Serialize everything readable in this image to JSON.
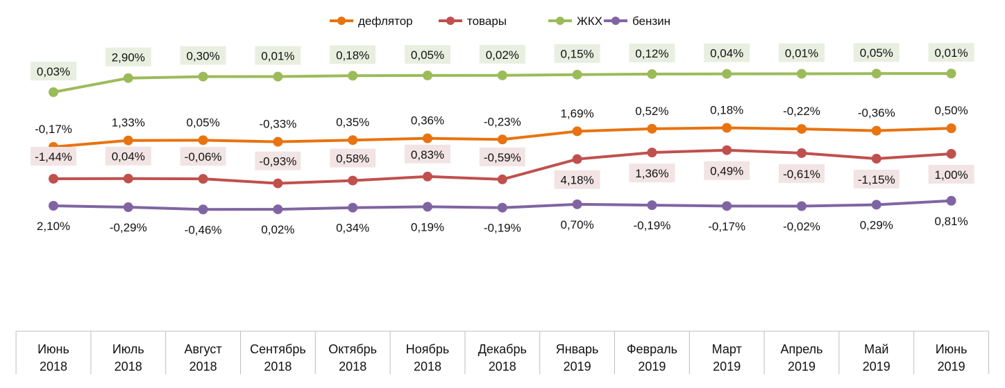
{
  "chart_data": {
    "type": "line",
    "title": "",
    "xlabel": "",
    "ylabel": "",
    "grid": false,
    "legend_placement": "top",
    "categories": [
      [
        "Июнь",
        "2018"
      ],
      [
        "Июль",
        "2018"
      ],
      [
        "Август",
        "2018"
      ],
      [
        "Сентябрь",
        "2018"
      ],
      [
        "Октябрь",
        "2018"
      ],
      [
        "Ноябрь",
        "2018"
      ],
      [
        "Декабрь",
        "2018"
      ],
      [
        "Январь",
        "2019"
      ],
      [
        "Февраль",
        "2019"
      ],
      [
        "Март",
        "2019"
      ],
      [
        "Апрель",
        "2019"
      ],
      [
        "Май",
        "2019"
      ],
      [
        "Июнь",
        "2019"
      ]
    ],
    "series": [
      {
        "name": "дефлятор",
        "color": "#e8730f",
        "values": [
          -0.17,
          1.33,
          0.05,
          -0.33,
          0.35,
          0.36,
          -0.23,
          1.69,
          0.52,
          0.18,
          -0.22,
          -0.36,
          0.5
        ],
        "labels": [
          "-0,17%",
          "1,33%",
          "0,05%",
          "-0,33%",
          "0,35%",
          "0,36%",
          "-0,23%",
          "1,69%",
          "0,52%",
          "0,18%",
          "-0,22%",
          "-0,36%",
          "0,50%"
        ]
      },
      {
        "name": "товары",
        "color": "#c0504d",
        "values": [
          -1.44,
          0.04,
          -0.06,
          -0.93,
          0.58,
          0.83,
          -0.59,
          4.18,
          1.36,
          0.49,
          -0.61,
          -1.15,
          1.0
        ],
        "labels": [
          "-1,44%",
          "0,04%",
          "-0,06%",
          "-0,93%",
          "0,58%",
          "0,83%",
          "-0,59%",
          "4,18%",
          "1,36%",
          "0,49%",
          "-0,61%",
          "-1,15%",
          "1,00%"
        ]
      },
      {
        "name": "ЖКХ",
        "color": "#9bbb59",
        "values": [
          0.03,
          2.9,
          0.3,
          0.01,
          0.18,
          0.05,
          0.02,
          0.15,
          0.12,
          0.04,
          0.01,
          0.05,
          0.01
        ],
        "labels": [
          "0,03%",
          "2,90%",
          "0,30%",
          "0,01%",
          "0,18%",
          "0,05%",
          "0,02%",
          "0,15%",
          "0,12%",
          "0,04%",
          "0,01%",
          "0,05%",
          "0,01%"
        ]
      },
      {
        "name": "бензин",
        "color": "#8064a2",
        "values": [
          2.1,
          -0.29,
          -0.46,
          0.02,
          0.34,
          0.19,
          -0.19,
          0.7,
          -0.19,
          -0.17,
          -0.02,
          0.29,
          0.81
        ],
        "labels": [
          "2,10%",
          "-0,29%",
          "-0,46%",
          "0,02%",
          "0,34%",
          "0,19%",
          "-0,19%",
          "0,70%",
          "-0,19%",
          "-0,17%",
          "-0,02%",
          "0,29%",
          "0,81%"
        ]
      }
    ]
  }
}
